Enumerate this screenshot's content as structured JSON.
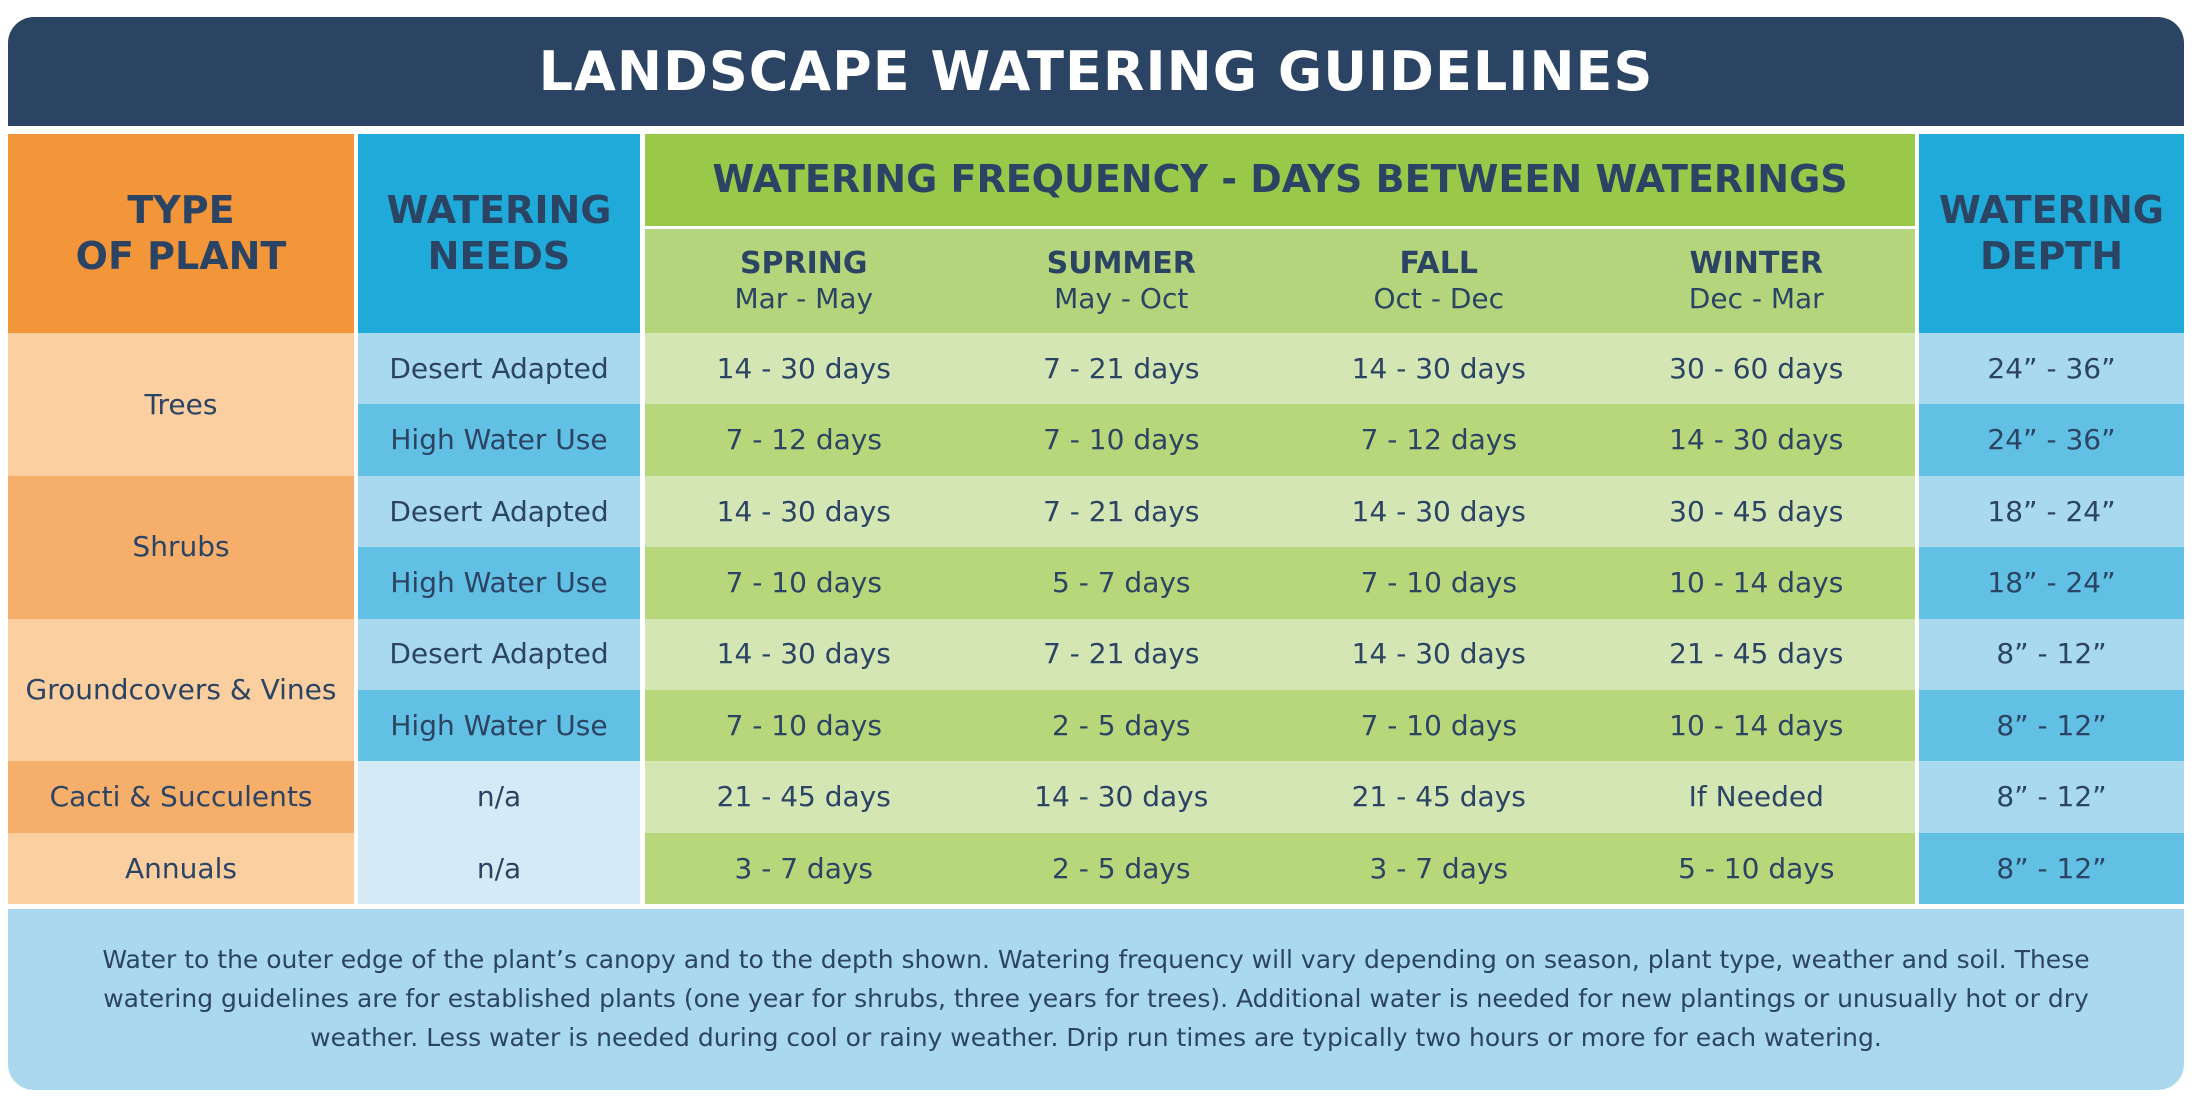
{
  "title": "LANDSCAPE WATERING GUIDELINES",
  "table": {
    "headers": {
      "plant": "TYPE\nOF PLANT",
      "needs": "WATERING\nNEEDS",
      "frequency": "WATERING FREQUENCY - DAYS BETWEEN WATERINGS",
      "depth": "WATERING\nDEPTH",
      "seasons": [
        {
          "name": "SPRING",
          "months": "Mar - May"
        },
        {
          "name": "SUMMER",
          "months": "May - Oct"
        },
        {
          "name": "FALL",
          "months": "Oct - Dec"
        },
        {
          "name": "WINTER",
          "months": "Dec - Mar"
        }
      ]
    },
    "groups": [
      {
        "plant": "Trees",
        "rows": [
          {
            "needs": "Desert Adapted",
            "frequency": [
              "14 - 30 days",
              "7 - 21 days",
              "14 - 30 days",
              "30 - 60 days"
            ],
            "depth": "24” - 36”"
          },
          {
            "needs": "High Water Use",
            "frequency": [
              "7 - 12 days",
              "7 - 10 days",
              "7 - 12 days",
              "14 - 30 days"
            ],
            "depth": "24” - 36”"
          }
        ]
      },
      {
        "plant": "Shrubs",
        "rows": [
          {
            "needs": "Desert Adapted",
            "frequency": [
              "14 - 30 days",
              "7 - 21 days",
              "14 - 30 days",
              "30 - 45 days"
            ],
            "depth": "18” - 24”"
          },
          {
            "needs": "High Water Use",
            "frequency": [
              "7 - 10 days",
              "5 - 7 days",
              "7 - 10 days",
              "10 - 14 days"
            ],
            "depth": "18” - 24”"
          }
        ]
      },
      {
        "plant": "Groundcovers & Vines",
        "rows": [
          {
            "needs": "Desert Adapted",
            "frequency": [
              "14 - 30 days",
              "7 - 21 days",
              "14 - 30 days",
              "21 - 45 days"
            ],
            "depth": "8” - 12”"
          },
          {
            "needs": "High Water Use",
            "frequency": [
              "7 - 10 days",
              "2 - 5 days",
              "7 - 10 days",
              "10 - 14 days"
            ],
            "depth": "8” - 12”"
          }
        ]
      },
      {
        "plant": "Cacti & Succulents",
        "rows": [
          {
            "needs": "n/a",
            "frequency": [
              "21 - 45 days",
              "14 - 30 days",
              "21 - 45 days",
              "If Needed"
            ],
            "depth": "8” - 12”"
          }
        ]
      },
      {
        "plant": "Annuals",
        "rows": [
          {
            "needs": "n/a",
            "frequency": [
              "3 - 7 days",
              "2 - 5 days",
              "3 - 7 days",
              "5 - 10 days"
            ],
            "depth": "8” - 12”"
          }
        ]
      }
    ]
  },
  "note": "Water to the outer edge of the plant’s canopy and to the depth shown. Watering frequency will vary depending on season, plant type, weather and soil. These watering guidelines are for established plants (one year for shrubs, three years for trees). Additional water is needed for new plantings or unusually hot or dry weather. Less water is needed during cool or rainy weather. Drip run times are typically two hours or more for each watering."
}
